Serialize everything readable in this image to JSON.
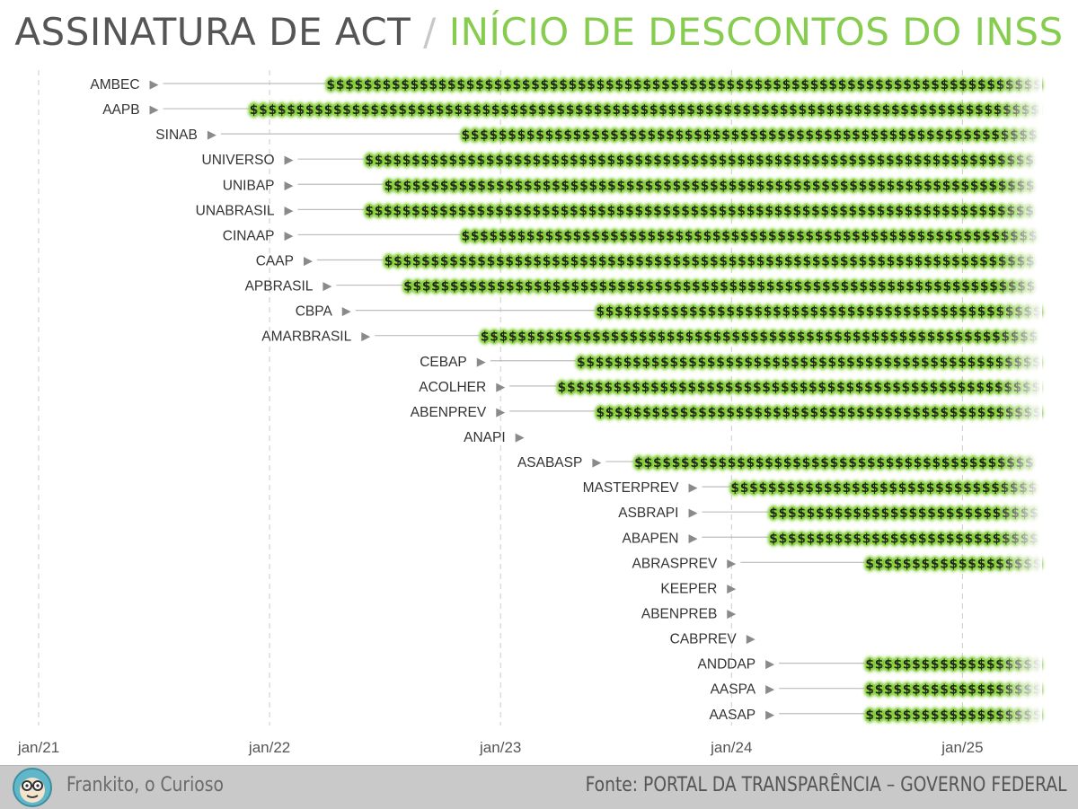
{
  "title": {
    "main": "ASSINATURA DE ACT",
    "separator": "/",
    "accent": "INÍCIO DE DESCONTOS DO INSS"
  },
  "colors": {
    "title_main": "#555555",
    "title_accent": "#86cc4e",
    "dollar_text": "#222222",
    "dollar_glow": "#8fe03a",
    "connector_line": "#bdbdbd",
    "marker": "#8a8a8a",
    "gridline": "#cccccc",
    "footer_bg": "#c9c9c9"
  },
  "footer": {
    "author": "Frankito, o Curioso",
    "source": "Fonte: PORTAL DA TRANSPARÊNCIA – GOVERNO FEDERAL",
    "logo_icon": "monkey-glasses-icon"
  },
  "chart_data": {
    "type": "timeline",
    "x_axis": {
      "ticks": [
        "jan/21",
        "jan/22",
        "jan/23",
        "jan/24",
        "jan/25"
      ],
      "range": [
        "2021-01",
        "2025-05"
      ]
    },
    "grid": true,
    "marker_symbol": "▶",
    "deduction_symbol": "$",
    "series": [
      {
        "label": "AMBEC",
        "act_signed": "2021-07",
        "deductions_start": "2022-04"
      },
      {
        "label": "AAPB",
        "act_signed": "2021-07",
        "deductions_start": "2021-12"
      },
      {
        "label": "SINAB",
        "act_signed": "2021-10",
        "deductions_start": "2022-11"
      },
      {
        "label": "UNIVERSO",
        "act_signed": "2022-02",
        "deductions_start": "2022-06"
      },
      {
        "label": "UNIBAP",
        "act_signed": "2022-02",
        "deductions_start": "2022-07"
      },
      {
        "label": "UNABRASIL",
        "act_signed": "2022-02",
        "deductions_start": "2022-06"
      },
      {
        "label": "CINAAP",
        "act_signed": "2022-02",
        "deductions_start": "2022-11"
      },
      {
        "label": "CAAP",
        "act_signed": "2022-03",
        "deductions_start": "2022-07"
      },
      {
        "label": "APBRASIL",
        "act_signed": "2022-04",
        "deductions_start": "2022-08"
      },
      {
        "label": "CBPA",
        "act_signed": "2022-05",
        "deductions_start": "2023-06"
      },
      {
        "label": "AMARBRASIL",
        "act_signed": "2022-06",
        "deductions_start": "2022-12"
      },
      {
        "label": "CEBAP",
        "act_signed": "2022-12",
        "deductions_start": "2023-05"
      },
      {
        "label": "ACOLHER",
        "act_signed": "2023-01",
        "deductions_start": "2023-04"
      },
      {
        "label": "ABENPREV",
        "act_signed": "2023-01",
        "deductions_start": "2023-06"
      },
      {
        "label": "ANAPI",
        "act_signed": "2023-02",
        "deductions_start": null
      },
      {
        "label": "ASABASP",
        "act_signed": "2023-06",
        "deductions_start": "2023-08"
      },
      {
        "label": "MASTERPREV",
        "act_signed": "2023-11",
        "deductions_start": "2024-01"
      },
      {
        "label": "ASBRAPI",
        "act_signed": "2023-11",
        "deductions_start": "2024-03"
      },
      {
        "label": "ABAPEN",
        "act_signed": "2023-11",
        "deductions_start": "2024-03"
      },
      {
        "label": "ABRASPREV",
        "act_signed": "2024-01",
        "deductions_start": "2024-08"
      },
      {
        "label": "KEEPER",
        "act_signed": "2024-01",
        "deductions_start": null
      },
      {
        "label": "ABENPREB",
        "act_signed": "2024-01",
        "deductions_start": null
      },
      {
        "label": "CABPREV",
        "act_signed": "2024-02",
        "deductions_start": null
      },
      {
        "label": "ANDDAP",
        "act_signed": "2024-03",
        "deductions_start": "2024-08"
      },
      {
        "label": "AASPA",
        "act_signed": "2024-03",
        "deductions_start": "2024-08"
      },
      {
        "label": "AASAP",
        "act_signed": "2024-03",
        "deductions_start": "2024-08"
      }
    ]
  }
}
